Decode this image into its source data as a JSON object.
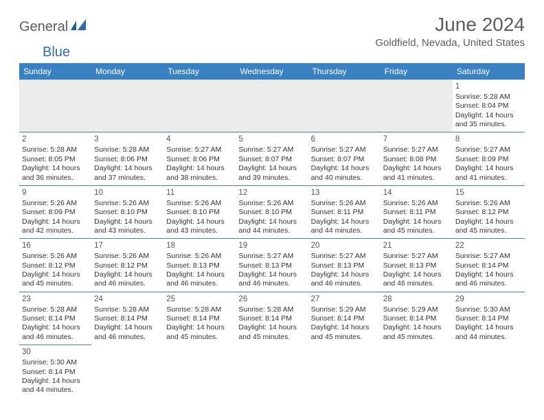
{
  "brand": {
    "part1": "General",
    "part2": "Blue"
  },
  "title": "June 2024",
  "location": "Goldfield, Nevada, United States",
  "colors": {
    "header_bg": "#3a81c4",
    "header_text": "#ffffff",
    "border": "#3a81c4",
    "blank_row_bg": "#ececec",
    "title_color": "#5c5c5c",
    "brand_gray": "#5c5c5c",
    "brand_blue": "#2f6aa8",
    "cell_text": "#333333"
  },
  "weekdays": [
    "Sunday",
    "Monday",
    "Tuesday",
    "Wednesday",
    "Thursday",
    "Friday",
    "Saturday"
  ],
  "layout": {
    "type": "calendar-table",
    "columns": 7,
    "rows": 6,
    "cell_font_size_pt": 8,
    "header_font_size_pt": 9,
    "title_font_size_pt": 21
  },
  "days": [
    {
      "n": 1,
      "sunrise": "5:28 AM",
      "sunset": "8:04 PM",
      "daylight": "14 hours and 35 minutes."
    },
    {
      "n": 2,
      "sunrise": "5:28 AM",
      "sunset": "8:05 PM",
      "daylight": "14 hours and 36 minutes."
    },
    {
      "n": 3,
      "sunrise": "5:28 AM",
      "sunset": "8:06 PM",
      "daylight": "14 hours and 37 minutes."
    },
    {
      "n": 4,
      "sunrise": "5:27 AM",
      "sunset": "8:06 PM",
      "daylight": "14 hours and 38 minutes."
    },
    {
      "n": 5,
      "sunrise": "5:27 AM",
      "sunset": "8:07 PM",
      "daylight": "14 hours and 39 minutes."
    },
    {
      "n": 6,
      "sunrise": "5:27 AM",
      "sunset": "8:07 PM",
      "daylight": "14 hours and 40 minutes."
    },
    {
      "n": 7,
      "sunrise": "5:27 AM",
      "sunset": "8:08 PM",
      "daylight": "14 hours and 41 minutes."
    },
    {
      "n": 8,
      "sunrise": "5:27 AM",
      "sunset": "8:09 PM",
      "daylight": "14 hours and 41 minutes."
    },
    {
      "n": 9,
      "sunrise": "5:26 AM",
      "sunset": "8:09 PM",
      "daylight": "14 hours and 42 minutes."
    },
    {
      "n": 10,
      "sunrise": "5:26 AM",
      "sunset": "8:10 PM",
      "daylight": "14 hours and 43 minutes."
    },
    {
      "n": 11,
      "sunrise": "5:26 AM",
      "sunset": "8:10 PM",
      "daylight": "14 hours and 43 minutes."
    },
    {
      "n": 12,
      "sunrise": "5:26 AM",
      "sunset": "8:10 PM",
      "daylight": "14 hours and 44 minutes."
    },
    {
      "n": 13,
      "sunrise": "5:26 AM",
      "sunset": "8:11 PM",
      "daylight": "14 hours and 44 minutes."
    },
    {
      "n": 14,
      "sunrise": "5:26 AM",
      "sunset": "8:11 PM",
      "daylight": "14 hours and 45 minutes."
    },
    {
      "n": 15,
      "sunrise": "5:26 AM",
      "sunset": "8:12 PM",
      "daylight": "14 hours and 45 minutes."
    },
    {
      "n": 16,
      "sunrise": "5:26 AM",
      "sunset": "8:12 PM",
      "daylight": "14 hours and 45 minutes."
    },
    {
      "n": 17,
      "sunrise": "5:26 AM",
      "sunset": "8:12 PM",
      "daylight": "14 hours and 46 minutes."
    },
    {
      "n": 18,
      "sunrise": "5:26 AM",
      "sunset": "8:13 PM",
      "daylight": "14 hours and 46 minutes."
    },
    {
      "n": 19,
      "sunrise": "5:27 AM",
      "sunset": "8:13 PM",
      "daylight": "14 hours and 46 minutes."
    },
    {
      "n": 20,
      "sunrise": "5:27 AM",
      "sunset": "8:13 PM",
      "daylight": "14 hours and 46 minutes."
    },
    {
      "n": 21,
      "sunrise": "5:27 AM",
      "sunset": "8:13 PM",
      "daylight": "14 hours and 46 minutes."
    },
    {
      "n": 22,
      "sunrise": "5:27 AM",
      "sunset": "8:14 PM",
      "daylight": "14 hours and 46 minutes."
    },
    {
      "n": 23,
      "sunrise": "5:28 AM",
      "sunset": "8:14 PM",
      "daylight": "14 hours and 46 minutes."
    },
    {
      "n": 24,
      "sunrise": "5:28 AM",
      "sunset": "8:14 PM",
      "daylight": "14 hours and 46 minutes."
    },
    {
      "n": 25,
      "sunrise": "5:28 AM",
      "sunset": "8:14 PM",
      "daylight": "14 hours and 45 minutes."
    },
    {
      "n": 26,
      "sunrise": "5:28 AM",
      "sunset": "8:14 PM",
      "daylight": "14 hours and 45 minutes."
    },
    {
      "n": 27,
      "sunrise": "5:29 AM",
      "sunset": "8:14 PM",
      "daylight": "14 hours and 45 minutes."
    },
    {
      "n": 28,
      "sunrise": "5:29 AM",
      "sunset": "8:14 PM",
      "daylight": "14 hours and 45 minutes."
    },
    {
      "n": 29,
      "sunrise": "5:30 AM",
      "sunset": "8:14 PM",
      "daylight": "14 hours and 44 minutes."
    },
    {
      "n": 30,
      "sunrise": "5:30 AM",
      "sunset": "8:14 PM",
      "daylight": "14 hours and 44 minutes."
    }
  ],
  "labels": {
    "sunrise": "Sunrise:",
    "sunset": "Sunset:",
    "daylight": "Daylight:"
  },
  "first_weekday_index": 6
}
